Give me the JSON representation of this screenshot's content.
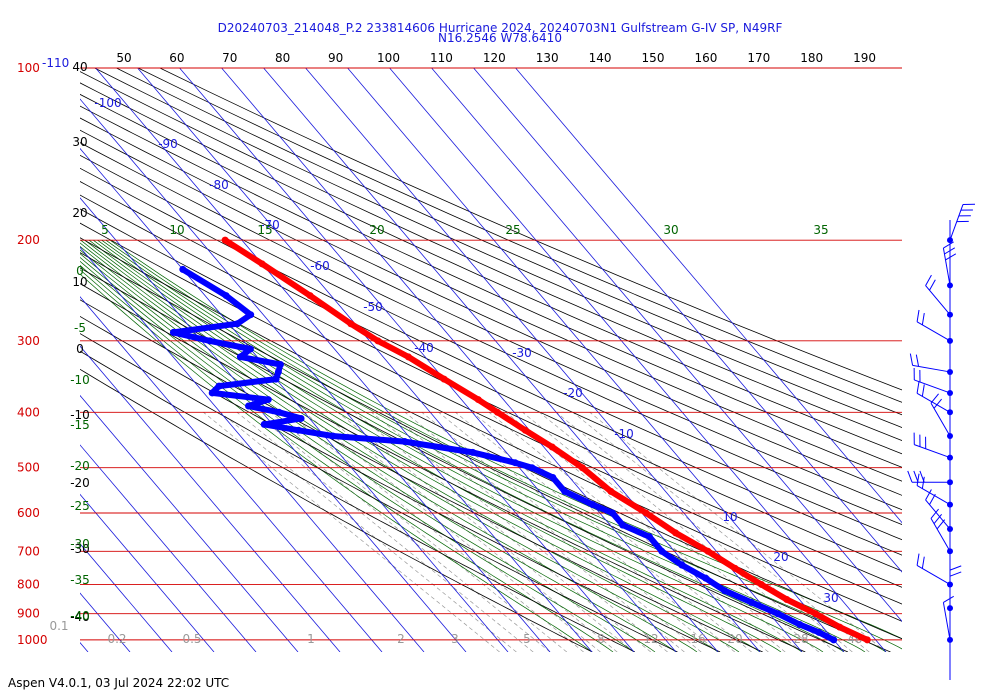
{
  "header": {
    "title_line1": "D20240703_214048_P.2 233814606 Hurricane 2024, 20240703N1 Gulfstream G-IV SP, N49RF",
    "title_line2": "N16.2546 W78.6410"
  },
  "footer": {
    "text": "Aspen V4.0.1, 03 Jul 2024  22:02 UTC"
  },
  "chart_data": {
    "type": "skew-t",
    "colors": {
      "isobar": "#d40000",
      "temperature": "#ff0000",
      "dewpoint": "#0000ff",
      "isotherm": "#1a1adc",
      "dry_adiabat": "#000000",
      "moist_adiabat": "#006400",
      "mixing_ratio": "#999999",
      "wind_barb": "#0000ff"
    },
    "pressure_levels": [
      {
        "p": 100,
        "label": "100",
        "alt_label": "-110"
      },
      {
        "p": 200,
        "label": "200"
      },
      {
        "p": 300,
        "label": "300"
      },
      {
        "p": 400,
        "label": "400"
      },
      {
        "p": 500,
        "label": "500"
      },
      {
        "p": 600,
        "label": "600"
      },
      {
        "p": 700,
        "label": "700"
      },
      {
        "p": 800,
        "label": "800"
      },
      {
        "p": 900,
        "label": "900"
      },
      {
        "p": 1000,
        "label": "1000"
      }
    ],
    "top_axis_ticks": [
      "50",
      "60",
      "70",
      "80",
      "90",
      "100",
      "110",
      "120",
      "130",
      "140",
      "150",
      "160",
      "170",
      "180",
      "190"
    ],
    "left_axis_ticks": [
      "40",
      "30",
      "20",
      "10",
      "0",
      "-10",
      "-20",
      "-30",
      "-40"
    ],
    "isotherm_labels": [
      "-100",
      "-90",
      "-80",
      "-70",
      "-60",
      "-50",
      "-40",
      "-30",
      "-20",
      "-10",
      "10",
      "20",
      "30"
    ],
    "moist_adiabat_labels": {
      "top": [
        "5",
        "10",
        "15",
        "20",
        "25",
        "30",
        "35"
      ],
      "left": [
        "0",
        "-5",
        "-10",
        "-15",
        "-20",
        "-25",
        "-30",
        "-35",
        "-40"
      ]
    },
    "mixing_ratio_labels": [
      "0.1",
      "0.2",
      "0.5",
      "1",
      "2",
      "3",
      "5",
      "8",
      "12",
      "16",
      "20",
      "28",
      "40"
    ],
    "temperature_profile": [
      [
        200,
        -44
      ],
      [
        220,
        -40
      ],
      [
        250,
        -35
      ],
      [
        280,
        -31
      ],
      [
        300,
        -28
      ],
      [
        320,
        -24
      ],
      [
        350,
        -20
      ],
      [
        380,
        -16
      ],
      [
        400,
        -14
      ],
      [
        430,
        -11
      ],
      [
        460,
        -8
      ],
      [
        500,
        -5
      ],
      [
        550,
        -3
      ],
      [
        600,
        1
      ],
      [
        650,
        4
      ],
      [
        700,
        8
      ],
      [
        750,
        11
      ],
      [
        800,
        14
      ],
      [
        850,
        17
      ],
      [
        900,
        21
      ],
      [
        950,
        24
      ],
      [
        1000,
        28
      ]
    ],
    "dewpoint_profile": [
      [
        225,
        -60
      ],
      [
        250,
        -55
      ],
      [
        270,
        -53
      ],
      [
        280,
        -58
      ],
      [
        290,
        -75
      ],
      [
        300,
        -68
      ],
      [
        310,
        -60
      ],
      [
        320,
        -64
      ],
      [
        330,
        -56
      ],
      [
        340,
        -58
      ],
      [
        350,
        -60
      ],
      [
        360,
        -75
      ],
      [
        370,
        -78
      ],
      [
        380,
        -66
      ],
      [
        390,
        -72
      ],
      [
        400,
        -66
      ],
      [
        410,
        -62
      ],
      [
        420,
        -72
      ],
      [
        430,
        -65
      ],
      [
        440,
        -58
      ],
      [
        450,
        -42
      ],
      [
        470,
        -28
      ],
      [
        490,
        -20
      ],
      [
        500,
        -17
      ],
      [
        520,
        -14
      ],
      [
        550,
        -14
      ],
      [
        580,
        -10
      ],
      [
        600,
        -7
      ],
      [
        630,
        -7
      ],
      [
        660,
        -3
      ],
      [
        700,
        -3
      ],
      [
        740,
        -1
      ],
      [
        780,
        2
      ],
      [
        820,
        4
      ],
      [
        860,
        8
      ],
      [
        900,
        12
      ],
      [
        940,
        15
      ],
      [
        970,
        18
      ],
      [
        1000,
        20
      ]
    ],
    "wind_barbs": [
      {
        "p": 200,
        "dir": 20,
        "spd": 35
      },
      {
        "p": 240,
        "dir": 350,
        "spd": 25
      },
      {
        "p": 270,
        "dir": 320,
        "spd": 20
      },
      {
        "p": 300,
        "dir": 300,
        "spd": 15
      },
      {
        "p": 340,
        "dir": 280,
        "spd": 15
      },
      {
        "p": 370,
        "dir": 290,
        "spd": 20
      },
      {
        "p": 400,
        "dir": 300,
        "spd": 20
      },
      {
        "p": 440,
        "dir": 330,
        "spd": 15
      },
      {
        "p": 480,
        "dir": 290,
        "spd": 25
      },
      {
        "p": 530,
        "dir": 270,
        "spd": 25
      },
      {
        "p": 580,
        "dir": 300,
        "spd": 15
      },
      {
        "p": 640,
        "dir": 320,
        "spd": 20
      },
      {
        "p": 700,
        "dir": 330,
        "spd": 25
      },
      {
        "p": 800,
        "dir": 300,
        "spd": 15
      },
      {
        "p": 880,
        "dir": 360,
        "spd": 20
      },
      {
        "p": 1000,
        "dir": 350,
        "spd": 10
      }
    ]
  }
}
